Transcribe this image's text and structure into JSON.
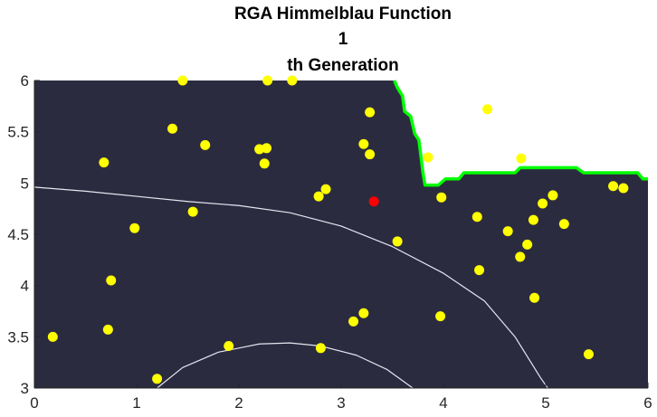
{
  "chart_data": {
    "type": "scatter",
    "title_lines": [
      "RGA Himmelblau Function",
      "1",
      "th Generation"
    ],
    "xlim": [
      0,
      6
    ],
    "ylim": [
      3,
      6
    ],
    "xticks": [
      "0",
      "1",
      "2",
      "3",
      "4",
      "5",
      "6"
    ],
    "yticks": [
      "3",
      "3.5",
      "4",
      "4.5",
      "5",
      "5.5",
      "6"
    ],
    "grid": false,
    "colors": {
      "background": "#2b2b40",
      "feasible_region": "#ffffff",
      "boundary": "#00ff00",
      "population": "#ffff00",
      "best": "#ff0000",
      "contour": "#e6e6f0"
    },
    "series": [
      {
        "points": [
          [
            0.18,
            3.5
          ],
          [
            0.68,
            5.2
          ],
          [
            0.72,
            3.57
          ],
          [
            0.75,
            4.05
          ],
          [
            0.98,
            4.56
          ],
          [
            1.2,
            3.09
          ],
          [
            1.35,
            5.53
          ],
          [
            1.45,
            6.0
          ],
          [
            1.55,
            4.72
          ],
          [
            1.67,
            5.37
          ],
          [
            1.9,
            3.41
          ],
          [
            2.2,
            5.33
          ],
          [
            2.25,
            5.19
          ],
          [
            2.27,
            5.34
          ],
          [
            2.28,
            6.0
          ],
          [
            2.52,
            6.0
          ],
          [
            2.78,
            4.87
          ],
          [
            2.8,
            3.39
          ],
          [
            2.85,
            4.94
          ],
          [
            3.12,
            3.65
          ],
          [
            3.22,
            3.73
          ],
          [
            3.22,
            5.38
          ],
          [
            3.28,
            5.28
          ],
          [
            3.28,
            5.69
          ],
          [
            3.55,
            4.43
          ],
          [
            3.85,
            5.25
          ],
          [
            3.97,
            3.7
          ],
          [
            3.98,
            4.86
          ],
          [
            4.33,
            4.67
          ],
          [
            4.35,
            4.15
          ],
          [
            4.43,
            5.72
          ],
          [
            4.63,
            4.53
          ],
          [
            4.75,
            4.28
          ],
          [
            4.76,
            5.24
          ],
          [
            4.82,
            4.4
          ],
          [
            4.88,
            4.64
          ],
          [
            4.89,
            3.88
          ],
          [
            4.97,
            4.8
          ],
          [
            5.07,
            4.88
          ],
          [
            5.18,
            4.6
          ],
          [
            5.42,
            3.33
          ],
          [
            5.66,
            4.97
          ],
          [
            5.76,
            4.95
          ]
        ]
      },
      {
        "points": [
          [
            3.32,
            4.82
          ]
        ]
      }
    ],
    "constraint_boundary": [
      [
        3.52,
        6.0
      ],
      [
        3.55,
        5.93
      ],
      [
        3.6,
        5.85
      ],
      [
        3.62,
        5.7
      ],
      [
        3.68,
        5.65
      ],
      [
        3.72,
        5.48
      ],
      [
        3.76,
        5.42
      ],
      [
        3.8,
        5.1
      ],
      [
        3.82,
        4.98
      ],
      [
        3.95,
        4.98
      ],
      [
        4.02,
        5.04
      ],
      [
        4.15,
        5.04
      ],
      [
        4.2,
        5.1
      ],
      [
        4.7,
        5.1
      ],
      [
        4.75,
        5.15
      ],
      [
        5.3,
        5.15
      ],
      [
        5.37,
        5.1
      ],
      [
        5.9,
        5.1
      ],
      [
        5.95,
        5.04
      ],
      [
        6.0,
        5.04
      ]
    ],
    "contours": [
      [
        [
          0.0,
          4.96
        ],
        [
          0.5,
          4.92
        ],
        [
          1.0,
          4.87
        ],
        [
          1.5,
          4.82
        ],
        [
          2.0,
          4.78
        ],
        [
          2.5,
          4.71
        ],
        [
          3.0,
          4.58
        ],
        [
          3.5,
          4.38
        ],
        [
          4.0,
          4.12
        ],
        [
          4.4,
          3.85
        ],
        [
          4.7,
          3.5
        ],
        [
          4.95,
          3.1
        ],
        [
          5.02,
          3.0
        ]
      ],
      [
        [
          1.2,
          3.0
        ],
        [
          1.45,
          3.2
        ],
        [
          1.8,
          3.35
        ],
        [
          2.2,
          3.43
        ],
        [
          2.5,
          3.44
        ],
        [
          2.8,
          3.41
        ],
        [
          3.15,
          3.32
        ],
        [
          3.45,
          3.18
        ],
        [
          3.7,
          3.0
        ]
      ]
    ]
  }
}
